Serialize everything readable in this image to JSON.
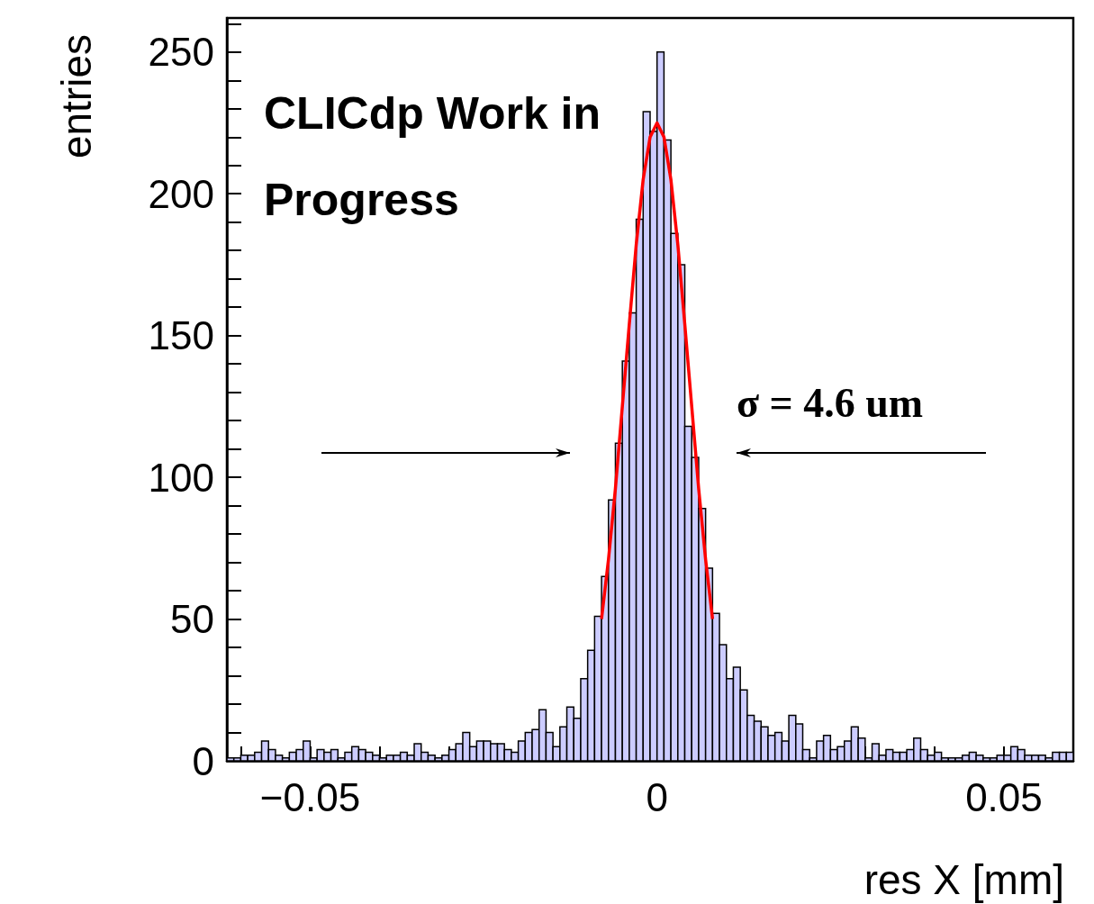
{
  "chart_data": {
    "type": "histogram",
    "xlabel": "res X [mm]",
    "ylabel": "entries",
    "annotations": [
      "CLICdp Work in Progress",
      "σ = 4.6 um"
    ],
    "xlim": [
      -0.062,
      0.06
    ],
    "xticks": [
      {
        "value": -0.06,
        "label": null
      },
      {
        "value": -0.05,
        "label": "−0.05"
      },
      {
        "value": -0.04,
        "label": null
      },
      {
        "value": -0.03,
        "label": null
      },
      {
        "value": -0.02,
        "label": null
      },
      {
        "value": -0.01,
        "label": null
      },
      0,
      {
        "value": 0.01,
        "label": null
      },
      {
        "value": 0.02,
        "label": null
      },
      {
        "value": 0.03,
        "label": null
      },
      {
        "value": 0.04,
        "label": null
      },
      {
        "value": 0.05,
        "label": "0.05"
      },
      {
        "value": 0.06,
        "label": null
      }
    ],
    "ylim": [
      0,
      262
    ],
    "yticks": [
      0,
      {
        "value": 10,
        "label": null
      },
      {
        "value": 20,
        "label": null
      },
      {
        "value": 30,
        "label": null
      },
      {
        "value": 40,
        "label": null
      },
      50,
      {
        "value": 60,
        "label": null
      },
      {
        "value": 70,
        "label": null
      },
      {
        "value": 80,
        "label": null
      },
      {
        "value": 90,
        "label": null
      },
      100,
      {
        "value": 110,
        "label": null
      },
      {
        "value": 120,
        "label": null
      },
      {
        "value": 130,
        "label": null
      },
      {
        "value": 140,
        "label": null
      },
      150,
      {
        "value": 160,
        "label": null
      },
      {
        "value": 170,
        "label": null
      },
      {
        "value": 180,
        "label": null
      },
      {
        "value": 190,
        "label": null
      },
      200,
      {
        "value": 210,
        "label": null
      },
      {
        "value": 220,
        "label": null
      },
      {
        "value": 230,
        "label": null
      },
      {
        "value": 240,
        "label": null
      },
      250,
      {
        "value": 260,
        "label": null
      }
    ],
    "bins": [
      -0.062,
      -0.061,
      -0.06,
      -0.059,
      -0.058,
      -0.057,
      -0.056,
      -0.055,
      -0.054,
      -0.053,
      -0.052,
      -0.051,
      -0.05,
      -0.049,
      -0.048,
      -0.047,
      -0.046,
      -0.045,
      -0.044,
      -0.043,
      -0.042,
      -0.041,
      -0.04,
      -0.039,
      -0.038,
      -0.037,
      -0.036,
      -0.035,
      -0.034,
      -0.033,
      -0.032,
      -0.031,
      -0.03,
      -0.029,
      -0.028,
      -0.027,
      -0.026,
      -0.025,
      -0.024,
      -0.023,
      -0.022,
      -0.021,
      -0.02,
      -0.019,
      -0.018,
      -0.017,
      -0.016,
      -0.015,
      -0.014,
      -0.013,
      -0.012,
      -0.011,
      -0.01,
      -0.009,
      -0.008,
      -0.007,
      -0.006,
      -0.005,
      -0.004,
      -0.003,
      -0.002,
      -0.001,
      0,
      0.001,
      0.002,
      0.003,
      0.004,
      0.005,
      0.006,
      0.007,
      0.008,
      0.009,
      0.01,
      0.011,
      0.012,
      0.013,
      0.014,
      0.015,
      0.016,
      0.017,
      0.018,
      0.019,
      0.02,
      0.021,
      0.022,
      0.023,
      0.024,
      0.025,
      0.026,
      0.027,
      0.028,
      0.029,
      0.03,
      0.031,
      0.032,
      0.033,
      0.034,
      0.035,
      0.036,
      0.037,
      0.038,
      0.039,
      0.04,
      0.041,
      0.042,
      0.043,
      0.044,
      0.045,
      0.046,
      0.047,
      0.048,
      0.049,
      0.05,
      0.051,
      0.052,
      0.053,
      0.054,
      0.055,
      0.056,
      0.057,
      0.058,
      0.059,
      0.06
    ],
    "series": [
      {
        "color": "#ccccff",
        "values": [
          1,
          1,
          2,
          2,
          3,
          7,
          4,
          2,
          1,
          3,
          4,
          7,
          1,
          4,
          3,
          4,
          1,
          3,
          5,
          4,
          3,
          2,
          1,
          2,
          2,
          3,
          2,
          6,
          3,
          2,
          1,
          2,
          4,
          6,
          10,
          5,
          7,
          7,
          6,
          6,
          4,
          3,
          7,
          10,
          11,
          18,
          10,
          5,
          12,
          19,
          15,
          29,
          39,
          51,
          65,
          92,
          112,
          141,
          158,
          191,
          229,
          222,
          250,
          219,
          186,
          175,
          118,
          107,
          89,
          68,
          52,
          41,
          29,
          33,
          25,
          16,
          14,
          12,
          9,
          10,
          7,
          16,
          13,
          4,
          1,
          7,
          9,
          4,
          5,
          7,
          12,
          8,
          1,
          6,
          2,
          4,
          3,
          3,
          4,
          8,
          4,
          2,
          3,
          1,
          1,
          1,
          2,
          3,
          2,
          1,
          1,
          2,
          2,
          5,
          4,
          2,
          2,
          2,
          1,
          3,
          3,
          3
        ]
      },
      {
        "type": "line",
        "color": "#ff0000",
        "marker": "none",
        "x": [
          -0.008,
          -0.007,
          -0.006,
          -0.005,
          -0.004,
          -0.003,
          -0.002,
          -0.001,
          0,
          0.001,
          0.002,
          0.003,
          0.004,
          0.005,
          0.006,
          0.007,
          0.008
        ],
        "values": [
          50,
          71,
          96,
          125,
          154,
          182,
          205,
          220,
          225,
          220,
          205,
          182,
          154,
          125,
          96,
          71,
          50
        ]
      }
    ]
  }
}
